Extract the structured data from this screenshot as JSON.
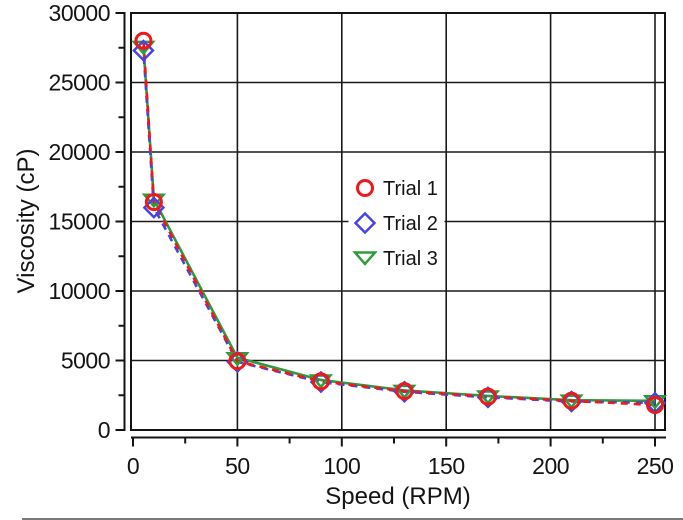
{
  "chart_data": {
    "type": "scatter",
    "title": "",
    "xlabel": "Speed (RPM)",
    "ylabel": "Viscosity (cP)",
    "xlim": [
      0,
      250
    ],
    "ylim": [
      0,
      30000
    ],
    "x_tick_labels": [
      "0",
      "50",
      "100",
      "150",
      "200",
      "250"
    ],
    "y_tick_labels": [
      "0",
      "5000",
      "10000",
      "15000",
      "20000",
      "25000",
      "30000"
    ],
    "x_minor_tick_step": 25,
    "y_minor_tick_step": 2500,
    "grid": "major gridlines on, both axes",
    "legend_position": "inside, upper-middle of plot",
    "x": [
      5,
      10,
      50,
      90,
      130,
      170,
      210,
      250
    ],
    "series": [
      {
        "name": "Trial 1",
        "marker": "open-circle",
        "color": "#f01818",
        "line": "dashed",
        "values": [
          28000,
          16400,
          4950,
          3500,
          2800,
          2400,
          2100,
          1800
        ]
      },
      {
        "name": "Trial 2",
        "marker": "open-diamond",
        "color": "#4444e8",
        "line": "dashed",
        "values": [
          27300,
          16000,
          4900,
          3450,
          2750,
          2350,
          2050,
          1950
        ]
      },
      {
        "name": "Trial 3",
        "marker": "open-triangle-down",
        "color": "#2e9b3e",
        "line": "dashed",
        "values": [
          27600,
          16600,
          5200,
          3600,
          2850,
          2450,
          2150,
          2100
        ]
      }
    ]
  },
  "figure": {
    "background_color": "#ffffff",
    "frame_color": "#141414",
    "gridline_color": "#1a1a1a",
    "legend_background": "#ffffff"
  }
}
